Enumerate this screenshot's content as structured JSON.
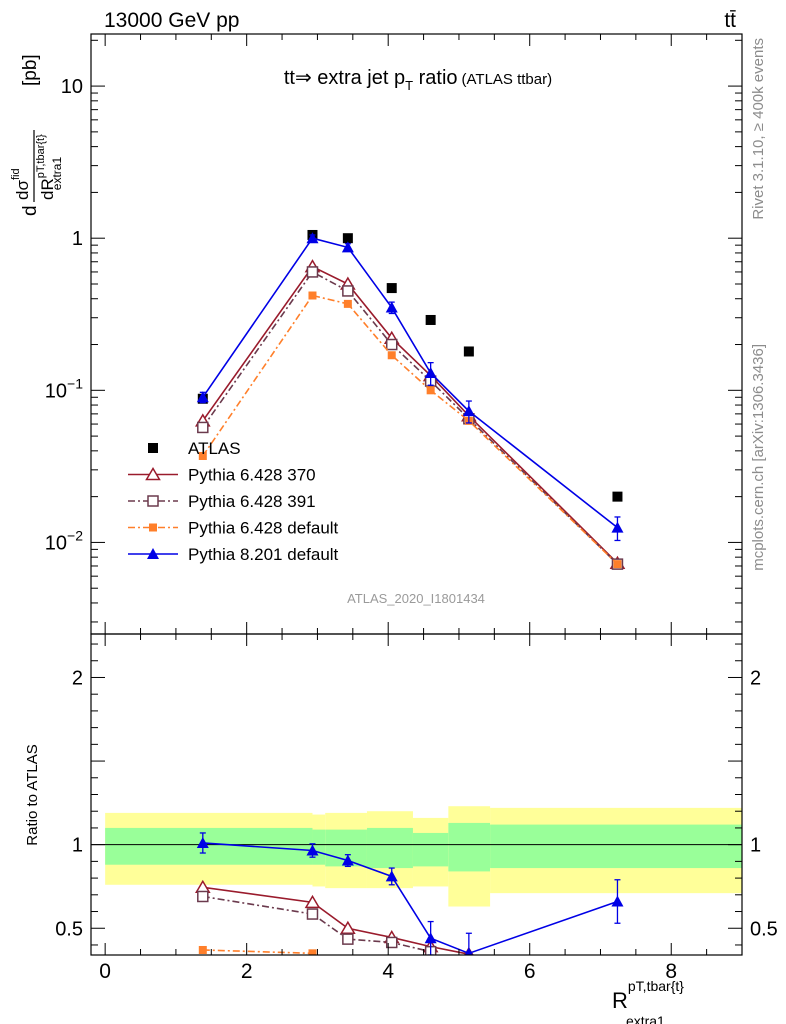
{
  "header": {
    "left": "13000 GeV pp",
    "right": "tt̄"
  },
  "side_labels": {
    "rivet": "Rivet 3.1.10, ≥ 400k events",
    "mcplots": "mcplots.cern.ch [arXiv:1306.3436]"
  },
  "colors": {
    "atlas": "#000000",
    "pythia6_370": "#9a1b2c",
    "pythia6_391": "#6b3a4d",
    "pythia6_default": "#ff7f2a",
    "pythia8_default": "#0000e6",
    "band_outer": "#ffff99",
    "band_inner": "#99ff99"
  },
  "chart_data": [
    {
      "type": "scatter",
      "panel": "main",
      "title_main": "tt⇒ extra jet p",
      "title_sub": "T",
      "title_tail": " ratio",
      "title_note": "(ATLAS ttbar)",
      "ylabel_parts": [
        "d",
        "dσ",
        "fid",
        "dR",
        "pT,tbar{t}",
        "extra1",
        "[pb]"
      ],
      "y_scale": "log",
      "ylim": [
        0.0025,
        22
      ],
      "xlim": [
        -0.2,
        9.0
      ],
      "yticks": [
        {
          "v": 0.01,
          "label": "10",
          "exp": "−2"
        },
        {
          "v": 0.1,
          "label": "10",
          "exp": "−1"
        },
        {
          "v": 1,
          "label": "1",
          "exp": ""
        },
        {
          "v": 10,
          "label": "10",
          "exp": ""
        }
      ],
      "analysis_label": "ATLAS_2020_I1801434",
      "legend_position": "lower-left",
      "series": [
        {
          "name": "ATLAS",
          "key": "atlas",
          "marker": "square-filled",
          "line": "none",
          "x": [
            1.38,
            2.93,
            3.43,
            4.05,
            4.6,
            5.14,
            7.24
          ],
          "y": [
            0.088,
            1.05,
            1.0,
            0.47,
            0.29,
            0.18,
            0.02
          ]
        },
        {
          "name": "Pythia 6.428 370",
          "key": "pythia6_370",
          "marker": "triangle-open",
          "line": "solid",
          "x": [
            1.38,
            2.93,
            3.43,
            4.05,
            4.6,
            5.14,
            7.24
          ],
          "y": [
            0.063,
            0.65,
            0.5,
            0.22,
            0.125,
            0.068,
            0.0073
          ]
        },
        {
          "name": "Pythia 6.428 391",
          "key": "pythia6_391",
          "marker": "square-open",
          "line": "dashdot",
          "x": [
            1.38,
            2.93,
            3.43,
            4.05,
            4.6,
            5.14,
            7.24
          ],
          "y": [
            0.057,
            0.6,
            0.45,
            0.2,
            0.115,
            0.065,
            0.0072
          ]
        },
        {
          "name": "Pythia 6.428 default",
          "key": "pythia6_default",
          "marker": "square-filled-small",
          "line": "dashdot",
          "x": [
            1.38,
            2.93,
            3.43,
            4.05,
            4.6,
            5.14,
            7.24
          ],
          "y": [
            0.037,
            0.42,
            0.37,
            0.17,
            0.1,
            0.063,
            0.0072
          ]
        },
        {
          "name": "Pythia 8.201 default",
          "key": "pythia8_default",
          "marker": "triangle-filled",
          "line": "solid",
          "x": [
            1.38,
            2.93,
            3.43,
            4.05,
            4.6,
            5.14,
            7.24
          ],
          "y": [
            0.09,
            1.0,
            0.87,
            0.35,
            0.13,
            0.073,
            0.0125
          ],
          "err": [
            0.007,
            0.05,
            0.05,
            0.03,
            0.022,
            0.012,
            0.0022
          ]
        }
      ]
    },
    {
      "type": "scatter",
      "panel": "ratio",
      "ylabel": "Ratio to ATLAS",
      "xlabel_main": "R",
      "xlabel_sup": "pT,tbar{t}",
      "xlabel_sub": "extra1",
      "y_scale": "linear",
      "ylim": [
        0.34,
        2.26
      ],
      "xlim": [
        -0.2,
        9.0
      ],
      "xticks": [
        {
          "v": 0,
          "label": "0"
        },
        {
          "v": 2,
          "label": "2"
        },
        {
          "v": 4,
          "label": "4"
        },
        {
          "v": 6,
          "label": "6"
        },
        {
          "v": 8,
          "label": "8"
        }
      ],
      "yticks": [
        {
          "v": 0.5,
          "label": "0.5"
        },
        {
          "v": 1,
          "label": "1"
        },
        {
          "v": 2,
          "label": "2"
        }
      ],
      "reference_line": 1,
      "bands": [
        {
          "x0": 0.0,
          "x1": 2.93,
          "outer": [
            0.76,
            1.19
          ],
          "inner": [
            0.88,
            1.1
          ]
        },
        {
          "x0": 2.93,
          "x1": 3.11,
          "outer": [
            0.75,
            1.18
          ],
          "inner": [
            0.88,
            1.09
          ]
        },
        {
          "x0": 3.11,
          "x1": 3.7,
          "outer": [
            0.74,
            1.19
          ],
          "inner": [
            0.87,
            1.09
          ]
        },
        {
          "x0": 3.7,
          "x1": 4.35,
          "outer": [
            0.74,
            1.2
          ],
          "inner": [
            0.86,
            1.1
          ]
        },
        {
          "x0": 4.35,
          "x1": 4.85,
          "outer": [
            0.75,
            1.16
          ],
          "inner": [
            0.87,
            1.07
          ]
        },
        {
          "x0": 4.85,
          "x1": 5.44,
          "outer": [
            0.63,
            1.23
          ],
          "inner": [
            0.84,
            1.13
          ]
        },
        {
          "x0": 5.44,
          "x1": 9.0,
          "outer": [
            0.71,
            1.22
          ],
          "inner": [
            0.86,
            1.12
          ]
        }
      ],
      "series": [
        {
          "name": "Pythia 6.428 370",
          "key": "pythia6_370",
          "marker": "triangle-open",
          "line": "solid",
          "x": [
            1.38,
            2.93,
            3.43,
            4.05,
            4.6,
            5.14
          ],
          "y": [
            0.745,
            0.655,
            0.5,
            0.445,
            0.39,
            0.345
          ]
        },
        {
          "name": "Pythia 6.428 391",
          "key": "pythia6_391",
          "marker": "square-open",
          "line": "dashdot",
          "x": [
            1.38,
            2.93,
            3.43,
            4.05,
            4.6
          ],
          "y": [
            0.69,
            0.585,
            0.435,
            0.415,
            0.36
          ]
        },
        {
          "name": "Pythia 6.428 default",
          "key": "pythia6_default",
          "marker": "square-filled-small",
          "line": "dashdot",
          "x": [
            1.38,
            2.93
          ],
          "y": [
            0.37,
            0.35
          ]
        },
        {
          "name": "Pythia 8.201 default",
          "key": "pythia8_default",
          "marker": "triangle-filled",
          "line": "solid",
          "x": [
            1.38,
            2.93,
            3.43,
            4.05,
            4.6,
            5.14,
            7.24
          ],
          "y": [
            1.01,
            0.965,
            0.905,
            0.81,
            0.44,
            0.35,
            0.66
          ],
          "err": [
            0.06,
            0.04,
            0.035,
            0.05,
            0.1,
            0.12,
            0.13
          ]
        }
      ]
    }
  ]
}
